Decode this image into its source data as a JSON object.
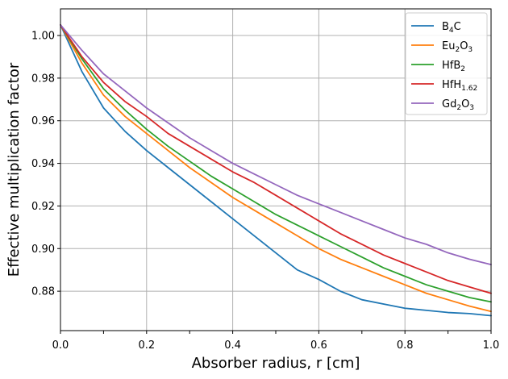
{
  "chart_data": {
    "type": "line",
    "title": "",
    "xlabel": "Absorber radius, r [cm]",
    "ylabel": "Effective multiplication factor",
    "xlim": [
      0,
      1
    ],
    "ylim": [
      0.8615,
      1.0125
    ],
    "xticks": [
      0,
      0.1,
      0.2,
      0.3,
      0.4,
      0.5,
      0.6,
      0.7,
      0.8,
      0.9,
      1.0
    ],
    "xtick_labels": [
      "0.0",
      "",
      "0.2",
      "",
      "0.4",
      "",
      "0.6",
      "",
      "0.8",
      "",
      "1.0"
    ],
    "yticks": [
      0.88,
      0.9,
      0.92,
      0.94,
      0.96,
      0.98,
      1.0
    ],
    "ytick_labels": [
      "0.88",
      "0.90",
      "0.92",
      "0.94",
      "0.96",
      "0.98",
      "1.00"
    ],
    "grid": "on",
    "legend_position": "top-right",
    "x": [
      0,
      0.05,
      0.1,
      0.15,
      0.2,
      0.25,
      0.3,
      0.35,
      0.4,
      0.45,
      0.5,
      0.55,
      0.6,
      0.65,
      0.7,
      0.75,
      0.8,
      0.85,
      0.9,
      0.95,
      1.0
    ],
    "series": [
      {
        "name": "B4C",
        "label_base": "B",
        "label_sub": "4",
        "label_tail": "C",
        "color": "#1f77b4",
        "values": [
          1.005,
          0.983,
          0.966,
          0.955,
          0.946,
          0.938,
          0.93,
          0.922,
          0.914,
          0.906,
          0.898,
          0.89,
          0.8855,
          0.88,
          0.876,
          0.874,
          0.872,
          0.871,
          0.87,
          0.8695,
          0.8685
        ]
      },
      {
        "name": "Eu2O3",
        "label_base": "Eu",
        "label_sub": "2",
        "label_tail": "O",
        "label_sub2": "3",
        "color": "#ff7f0e",
        "values": [
          1.005,
          0.987,
          0.972,
          0.962,
          0.954,
          0.946,
          0.938,
          0.931,
          0.924,
          0.918,
          0.912,
          0.906,
          0.9,
          0.895,
          0.891,
          0.887,
          0.883,
          0.879,
          0.876,
          0.873,
          0.8705
        ]
      },
      {
        "name": "HfB2",
        "label_base": "HfB",
        "label_sub": "2",
        "color": "#2ca02c",
        "values": [
          1.005,
          0.989,
          0.975,
          0.965,
          0.956,
          0.948,
          0.941,
          0.934,
          0.928,
          0.922,
          0.916,
          0.911,
          0.906,
          0.901,
          0.896,
          0.891,
          0.887,
          0.883,
          0.88,
          0.877,
          0.875
        ]
      },
      {
        "name": "HfH1.62",
        "label_base": "HfH",
        "label_sub": "1.62",
        "color": "#d62728",
        "values": [
          1.005,
          0.99,
          0.978,
          0.969,
          0.962,
          0.954,
          0.948,
          0.942,
          0.936,
          0.931,
          0.925,
          0.919,
          0.913,
          0.907,
          0.902,
          0.897,
          0.893,
          0.889,
          0.885,
          0.882,
          0.879
        ]
      },
      {
        "name": "Gd2O3",
        "label_base": "Gd",
        "label_sub": "2",
        "label_tail": "O",
        "label_sub2": "3",
        "color": "#9467bd",
        "values": [
          1.005,
          0.993,
          0.982,
          0.974,
          0.966,
          0.959,
          0.952,
          0.946,
          0.94,
          0.935,
          0.93,
          0.925,
          0.921,
          0.917,
          0.913,
          0.909,
          0.905,
          0.902,
          0.898,
          0.895,
          0.8925
        ]
      }
    ]
  }
}
